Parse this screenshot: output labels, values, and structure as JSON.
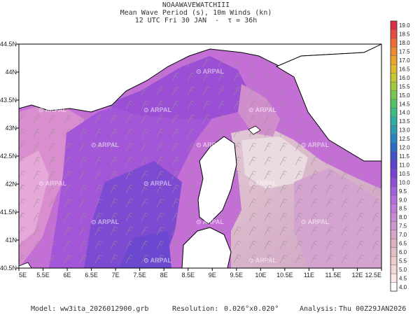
{
  "header": {
    "line1": "NOAAWAVEWATCHIII",
    "line2": "Mean Wave Period (s), 10m Winds (kn)",
    "line3": "12 UTC Fri 30 JAN  -  τ = 36h"
  },
  "map": {
    "lon_ticks": [
      "5E",
      "5.5E",
      "6E",
      "6.5E",
      "7E",
      "7.5E",
      "8E",
      "8.5E",
      "9E",
      "9.5E",
      "10E",
      "10.5E",
      "11E",
      "11.5E",
      "12E",
      "12.5E"
    ],
    "lat_ticks": [
      "40.5N",
      "41N",
      "41.5N",
      "42N",
      "42.5N",
      "43N",
      "43.5N",
      "44N",
      "44.5N"
    ],
    "lon_range": [
      5,
      12.5
    ],
    "lat_range": [
      40.5,
      44.5
    ],
    "watermark": "ARPAL"
  },
  "colorbar": {
    "labels": [
      "4.0",
      "4.5",
      "5.0",
      "5.5",
      "6.0",
      "6.5",
      "7.0",
      "7.5",
      "8.0",
      "8.5",
      "9.0",
      "9.5",
      "10.0",
      "10.5",
      "11.0",
      "11.5",
      "12.0",
      "12.5",
      "13.0",
      "13.5",
      "14.0",
      "14.5",
      "15.0",
      "15.5",
      "16.0",
      "16.5",
      "17.0",
      "17.5",
      "18.0",
      "18.5",
      "19.0"
    ],
    "colors": [
      "#ffffff",
      "#fbe8e8",
      "#f5d8d8",
      "#eccccc",
      "#e6bfc6",
      "#dcb0c2",
      "#d6a6c8",
      "#cf97cf",
      "#c989d6",
      "#c07bdc",
      "#b56ee0",
      "#a35fdd",
      "#8f4fd8",
      "#7a41d2",
      "#5c42cc",
      "#3f52c9",
      "#2e6ac8",
      "#2a84c2",
      "#2a9cb6",
      "#2eb0a0",
      "#38bd82",
      "#52c466",
      "#76c94e",
      "#a0ca3a",
      "#c6c82e",
      "#e0bc2a",
      "#eca52a",
      "#f18a2e",
      "#f06a34",
      "#e84b3c",
      "#da2f44"
    ]
  },
  "footer": {
    "model_label": "Model:",
    "model_value": "ww3ita_2026012900.grb",
    "res_label": "Resolution:",
    "res_value": "0.026°x0.020°",
    "analysis_label": "Analysis:",
    "analysis_value": "Thu 00Z29JAN2026"
  }
}
